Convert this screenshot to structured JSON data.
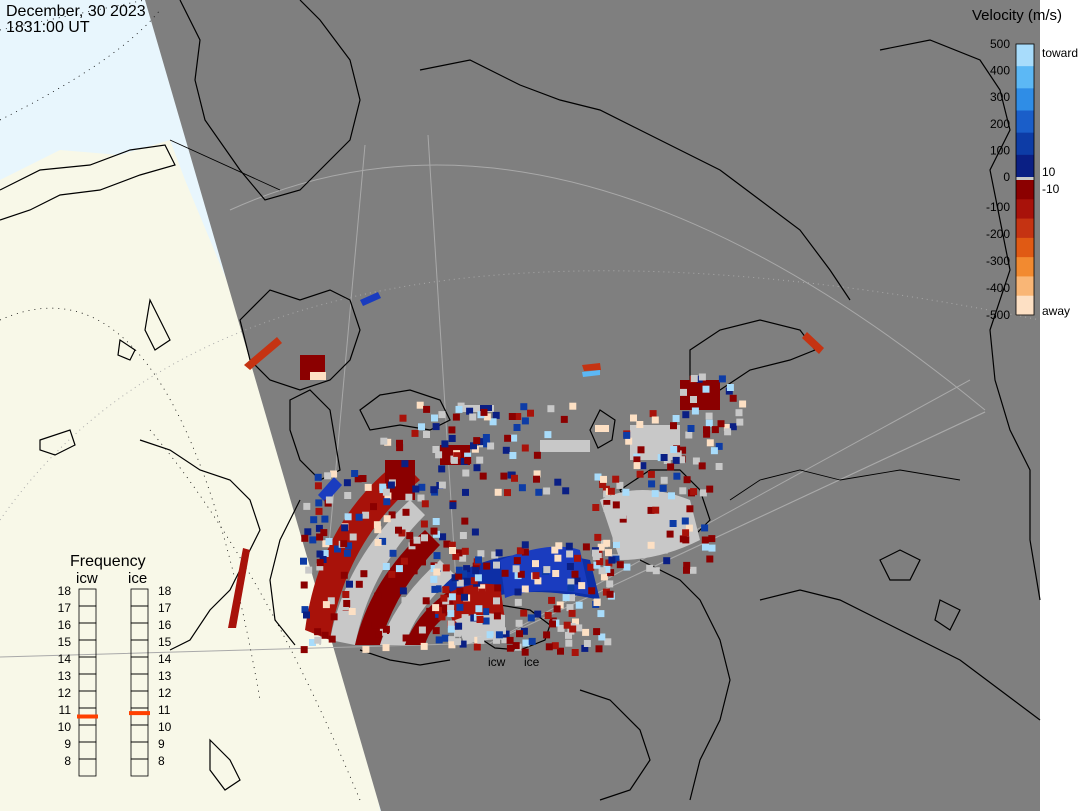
{
  "header": {
    "date": "December, 30 2023",
    "time": "1831:00 UT"
  },
  "velocity_scale": {
    "title": "Velocity (m/s)",
    "ticks": [
      "500",
      "400",
      "300",
      "200",
      "100",
      "0",
      "-100",
      "-200",
      "-300",
      "-400",
      "-500"
    ],
    "tick_values": [
      500,
      400,
      300,
      200,
      100,
      0,
      -100,
      -200,
      -300,
      -400,
      -500
    ],
    "threshold_pos": "10",
    "threshold_neg": "-10",
    "toward_label": "toward",
    "away_label": "away",
    "toward_colors": [
      "#a8dcfb",
      "#5cb8f5",
      "#2f8de6",
      "#1a5ec9",
      "#0d3ca6",
      "#0a1f84"
    ],
    "away_colors": [
      "#8b0000",
      "#a8120a",
      "#c53312",
      "#e05a14",
      "#f28a30",
      "#f9b676",
      "#fde0c4"
    ],
    "ground_scatter_color": "#c8c8c8"
  },
  "frequency_panel": {
    "title": "Frequency",
    "radars": [
      {
        "name": "icw",
        "value": 10.5
      },
      {
        "name": "ice",
        "value": 10.7
      }
    ],
    "scale_labels": [
      "18",
      "17",
      "16",
      "15",
      "14",
      "13",
      "12",
      "11",
      "10",
      "9",
      "8"
    ],
    "scale_min": 8,
    "scale_max": 18,
    "marker_color": "#ff4000"
  },
  "radar_sites": [
    {
      "name": "icw"
    },
    {
      "name": "ice"
    }
  ],
  "colors": {
    "night": "#7f7f7f",
    "day_land": "#f8f8e8",
    "day_ocean": "#e8f6fd",
    "coastline": "#000000",
    "grid": "#a9a9a9"
  }
}
